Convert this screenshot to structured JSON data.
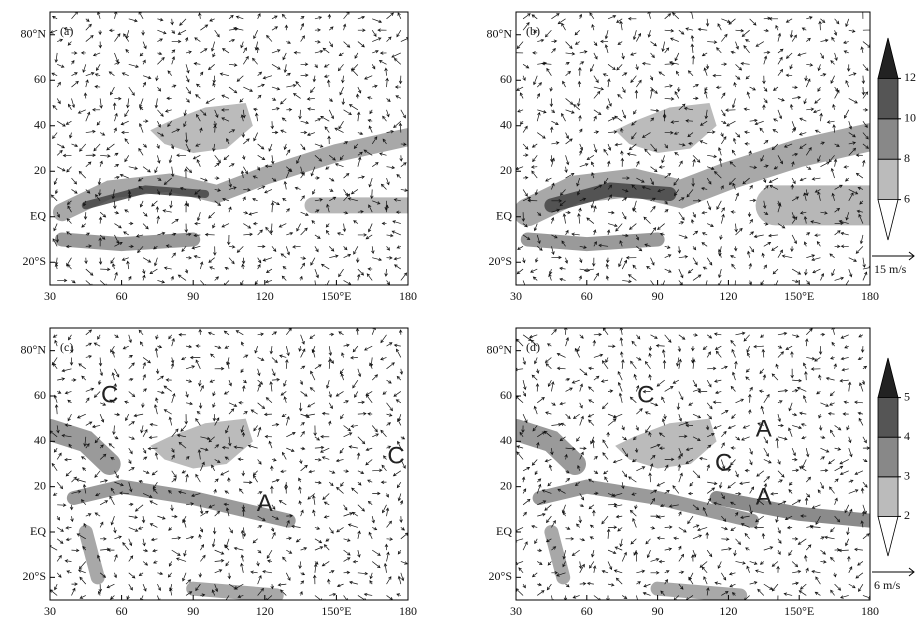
{
  "panels": [
    {
      "label": "(a)",
      "annotations": []
    },
    {
      "label": "(b)",
      "annotations": []
    },
    {
      "label": "(c)",
      "annotations": [
        "C",
        "C",
        "A"
      ]
    },
    {
      "label": "(d)",
      "annotations": [
        "C",
        "A",
        "C",
        "A"
      ]
    }
  ],
  "y_axis_labels": [
    "80°N",
    "60",
    "40",
    "20",
    "EQ",
    "20°S"
  ],
  "x_axis_labels": [
    "30",
    "60",
    "90",
    "120",
    "150°E",
    "180"
  ],
  "colorbars": [
    {
      "ticks": [
        6,
        8,
        10,
        12
      ],
      "reference_vector": "15 m/s"
    },
    {
      "ticks": [
        2,
        3,
        4,
        5
      ],
      "reference_vector": "6 m/s"
    }
  ]
}
